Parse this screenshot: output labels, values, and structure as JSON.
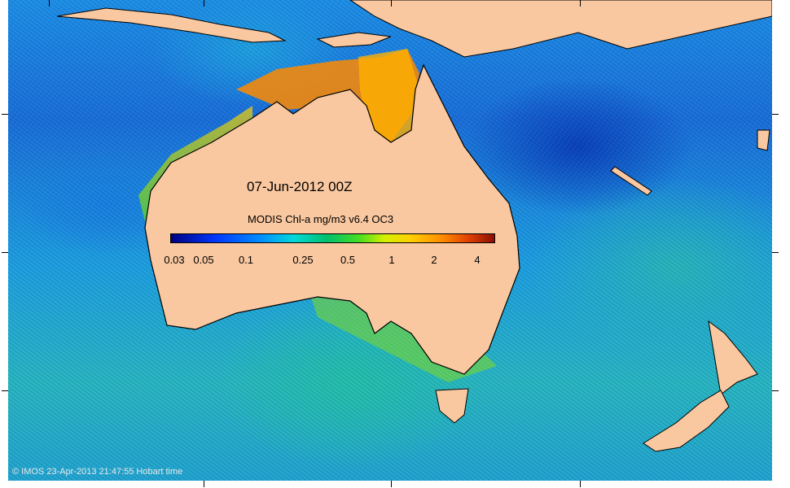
{
  "map": {
    "title": "07-Jun-2012 00Z",
    "colorbar_label": "MODIS Chl-a mg/m3 v6.4 OC3",
    "colorbar_ticks": [
      "0.03",
      "0.05",
      "0.1",
      "0.25",
      "0.5",
      "1",
      "2",
      "4"
    ],
    "credit": "© IMOS 23-Apr-2013 21:47:55 Hobart time",
    "colors": {
      "land": "#f9c8a0",
      "ocean_low": "#0b3fb8",
      "ocean_mid": "#1f8fe6",
      "ocean_high": "#2bb7c0",
      "coastal_high": "#ff8a00",
      "coastal_peak": "#8a1000"
    }
  }
}
